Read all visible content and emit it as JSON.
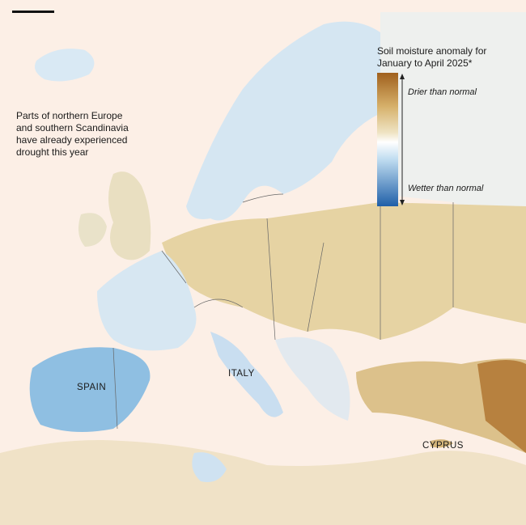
{
  "legend": {
    "title_lines": [
      "Soil moisture anomaly for",
      "January to April 2025*"
    ],
    "top_label": "Drier than normal",
    "bottom_label": "Wetter than normal"
  },
  "annotation": {
    "lines": [
      "Parts of northern Europe",
      "and southern Scandinavia",
      "have already experienced",
      "drought this year"
    ]
  },
  "places": {
    "spain": "SPAIN",
    "italy": "ITALY",
    "cyprus": "CYPRUS"
  }
}
